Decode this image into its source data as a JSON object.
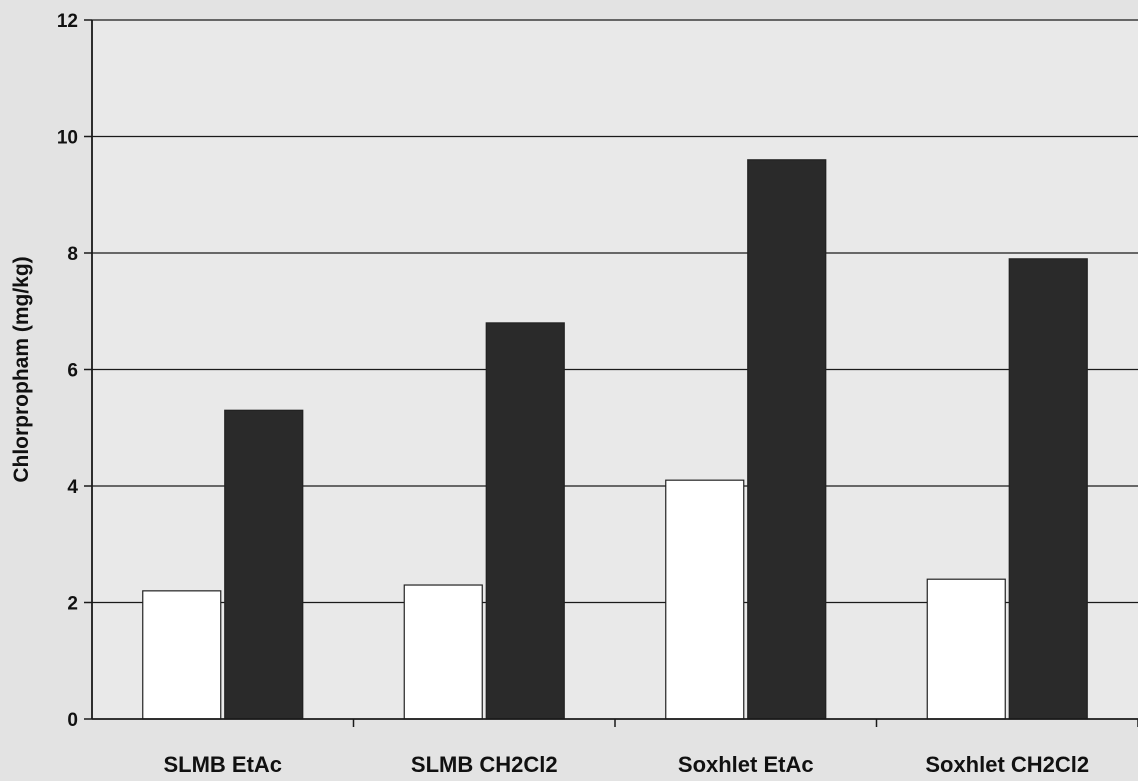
{
  "chart_data": {
    "type": "bar",
    "title": "",
    "xlabel": "",
    "ylabel": "Chlorpropham (mg/kg)",
    "ylim": [
      0,
      12
    ],
    "yticks": [
      0,
      2,
      4,
      6,
      8,
      10,
      12
    ],
    "categories": [
      "SLMB EtAc",
      "SLMB CH2Cl2",
      "Soxhlet EtAc",
      "Soxhlet CH2Cl2"
    ],
    "series": [
      {
        "values": [
          2.2,
          2.3,
          4.1,
          2.4
        ],
        "color": "#ffffff"
      },
      {
        "values": [
          5.3,
          6.8,
          9.6,
          7.9
        ],
        "color": "#2a2a2a"
      }
    ],
    "grid": true,
    "legend": "none"
  }
}
